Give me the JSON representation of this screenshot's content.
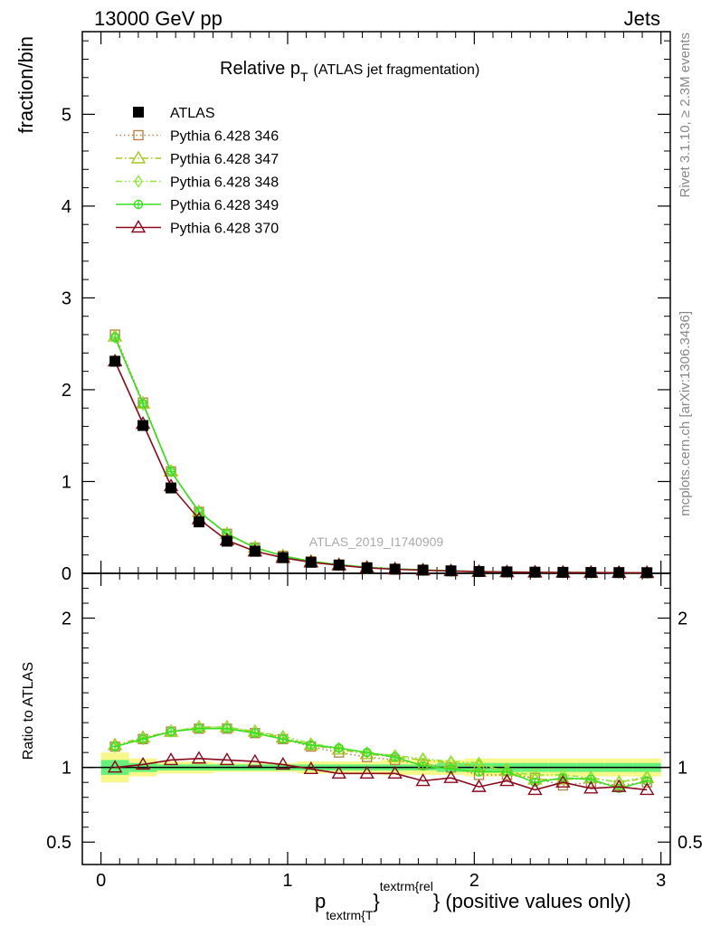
{
  "header": {
    "left": "13000 GeV pp",
    "right": "Jets"
  },
  "side_labels": {
    "rivet": "Rivet 3.1.10, ≥ 2.3M events",
    "mcplots": "mcplots.cern.ch [arXiv:1306.3436]"
  },
  "title": {
    "main": "Relative p",
    "sub": "T",
    "suffix": "(ATLAS jet fragmentation)"
  },
  "watermark": "ATLAS_2019_I1740909",
  "xlabel": {
    "p": "p",
    "sub": "textrm{T",
    "sup": "textrm{rel",
    "brace": "}",
    "rest": "} (positive values only)"
  },
  "ylabel_main": "fraction/bin",
  "ylabel_ratio": "Ratio to ATLAS",
  "chart_data": [
    {
      "type": "line",
      "panel": "main",
      "ylabel": "fraction/bin",
      "xlim": [
        -0.1,
        3.05
      ],
      "ylim": [
        0,
        5.9
      ],
      "yticks": [
        0,
        1,
        2,
        3,
        4,
        5
      ],
      "xticks": [
        0,
        1,
        2,
        3
      ],
      "x": [
        0.075,
        0.225,
        0.375,
        0.525,
        0.675,
        0.825,
        0.975,
        1.125,
        1.275,
        1.425,
        1.575,
        1.725,
        1.875,
        2.025,
        2.175,
        2.325,
        2.475,
        2.625,
        2.775,
        2.925
      ],
      "legend_position": "top-left",
      "series": [
        {
          "name": "ATLAS",
          "color": "#000000",
          "marker": "square-filled",
          "style": "points",
          "values": [
            2.31,
            1.61,
            0.93,
            0.56,
            0.35,
            0.24,
            0.17,
            0.12,
            0.09,
            0.06,
            0.045,
            0.035,
            0.027,
            0.02,
            0.016,
            0.013,
            0.011,
            0.009,
            0.008,
            0.007
          ]
        },
        {
          "name": "Pythia 6.428 346",
          "color": "#b8864b",
          "marker": "square-open",
          "style": "dotted",
          "values": [
            2.6,
            1.86,
            1.11,
            0.67,
            0.43,
            0.28,
            0.19,
            0.13,
            0.095,
            0.065,
            0.048,
            0.036,
            0.027,
            0.019,
            0.015,
            0.012,
            0.01,
            0.008,
            0.007,
            0.006
          ]
        },
        {
          "name": "Pythia 6.428 347",
          "color": "#a8c81e",
          "marker": "triangle-open",
          "style": "dashdot",
          "values": [
            2.58,
            1.85,
            1.11,
            0.67,
            0.43,
            0.28,
            0.19,
            0.13,
            0.095,
            0.065,
            0.048,
            0.036,
            0.027,
            0.02,
            0.015,
            0.012,
            0.01,
            0.008,
            0.007,
            0.006
          ]
        },
        {
          "name": "Pythia 6.428 348",
          "color": "#8fe83a",
          "marker": "diamond-open",
          "style": "dashdotdot",
          "values": [
            2.57,
            1.84,
            1.11,
            0.67,
            0.43,
            0.28,
            0.19,
            0.13,
            0.095,
            0.065,
            0.048,
            0.036,
            0.027,
            0.02,
            0.015,
            0.012,
            0.01,
            0.008,
            0.007,
            0.006
          ]
        },
        {
          "name": "Pythia 6.428 349",
          "color": "#3adf22",
          "marker": "circle-cross",
          "style": "solid",
          "values": [
            2.57,
            1.85,
            1.11,
            0.67,
            0.43,
            0.28,
            0.19,
            0.13,
            0.095,
            0.065,
            0.048,
            0.036,
            0.027,
            0.019,
            0.015,
            0.012,
            0.01,
            0.008,
            0.007,
            0.006
          ]
        },
        {
          "name": "Pythia 6.428 370",
          "color": "#8b0a1e",
          "marker": "triangle-open",
          "style": "solid",
          "values": [
            2.31,
            1.63,
            0.95,
            0.59,
            0.36,
            0.24,
            0.17,
            0.12,
            0.088,
            0.06,
            0.044,
            0.033,
            0.025,
            0.018,
            0.014,
            0.011,
            0.009,
            0.008,
            0.007,
            0.006
          ]
        }
      ]
    },
    {
      "type": "line",
      "panel": "ratio",
      "ylabel": "Ratio to ATLAS",
      "xlim": [
        -0.1,
        3.05
      ],
      "ylim": [
        0.35,
        2.3
      ],
      "yticks": [
        0.5,
        1,
        2
      ],
      "x": [
        0.075,
        0.225,
        0.375,
        0.525,
        0.675,
        0.825,
        0.975,
        1.125,
        1.275,
        1.425,
        1.575,
        1.725,
        1.875,
        2.025,
        2.175,
        2.325,
        2.475,
        2.625,
        2.775,
        2.925
      ],
      "band_inner": [
        0.05,
        0.03,
        0.02,
        0.02,
        0.02,
        0.02,
        0.02,
        0.02,
        0.02,
        0.02,
        0.02,
        0.02,
        0.03,
        0.03,
        0.03,
        0.03,
        0.03,
        0.03,
        0.03,
        0.03
      ],
      "band_outer": [
        0.1,
        0.06,
        0.04,
        0.04,
        0.03,
        0.03,
        0.03,
        0.04,
        0.04,
        0.04,
        0.05,
        0.05,
        0.05,
        0.06,
        0.06,
        0.06,
        0.06,
        0.06,
        0.06,
        0.06
      ],
      "band_colors": {
        "inner": "#66f27a",
        "outer": "#f7f78a"
      },
      "series": [
        {
          "name": "Pythia 6.428 346",
          "color": "#b8864b",
          "marker": "square-open",
          "style": "dotted",
          "values": [
            1.14,
            1.19,
            1.24,
            1.26,
            1.26,
            1.23,
            1.19,
            1.14,
            1.1,
            1.07,
            1.05,
            1.02,
            1.0,
            0.95,
            0.95,
            0.93,
            0.88,
            0.9,
            0.88,
            0.9
          ]
        },
        {
          "name": "Pythia 6.428 347",
          "color": "#a8c81e",
          "marker": "triangle-open",
          "style": "dashdot",
          "values": [
            1.15,
            1.2,
            1.24,
            1.27,
            1.27,
            1.24,
            1.2,
            1.15,
            1.12,
            1.09,
            1.07,
            1.05,
            1.03,
            1.01,
            0.98,
            0.92,
            0.92,
            0.93,
            0.9,
            0.93
          ]
        },
        {
          "name": "Pythia 6.428 348",
          "color": "#8fe83a",
          "marker": "diamond-open",
          "style": "dashdotdot",
          "values": [
            1.14,
            1.19,
            1.24,
            1.27,
            1.27,
            1.24,
            1.21,
            1.16,
            1.13,
            1.1,
            1.08,
            1.06,
            1.04,
            1.03,
            0.97,
            0.95,
            0.95,
            0.93,
            0.9,
            0.94
          ]
        },
        {
          "name": "Pythia 6.428 349",
          "color": "#3adf22",
          "marker": "circle-cross",
          "style": "solid",
          "values": [
            1.14,
            1.19,
            1.24,
            1.26,
            1.26,
            1.23,
            1.19,
            1.15,
            1.13,
            1.1,
            1.07,
            1.01,
            0.99,
            0.97,
            0.97,
            0.9,
            0.93,
            0.92,
            0.86,
            0.91
          ]
        },
        {
          "name": "Pythia 6.428 370",
          "color": "#8b0a1e",
          "marker": "triangle-open",
          "style": "solid",
          "values": [
            1.0,
            1.02,
            1.05,
            1.06,
            1.05,
            1.04,
            1.02,
            0.99,
            0.96,
            0.96,
            0.96,
            0.91,
            0.93,
            0.87,
            0.91,
            0.85,
            0.9,
            0.86,
            0.87,
            0.85
          ]
        }
      ]
    }
  ]
}
